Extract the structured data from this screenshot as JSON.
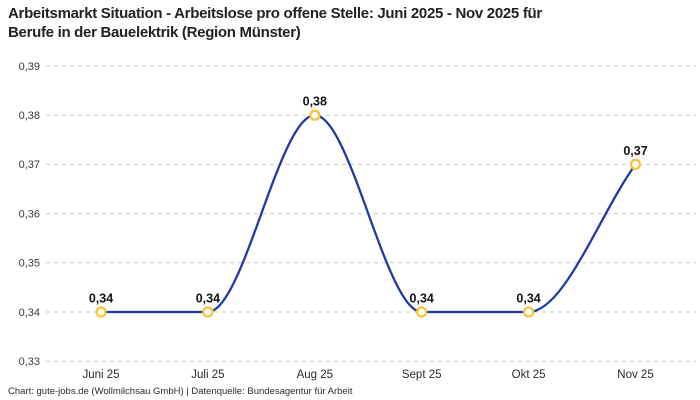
{
  "title": {
    "line1": "Arbeitsmarkt Situation - Arbeitslose pro offene Stelle: Juni 2025 - Nov 2025 für",
    "line2": "Berufe in der Bauelektrik (Region Münster)"
  },
  "caption": "Chart: gute-jobs.de (Wollmilchsau GmbH) | Datenquelle: Bundesagentur für Arbeit",
  "chart_data": {
    "type": "line",
    "title": "Arbeitsmarkt Situation - Arbeitslose pro offene Stelle: Juni 2025 - Nov 2025 für Berufe in der Bauelektrik (Region Münster)",
    "categories": [
      "Juni 25",
      "Juli 25",
      "Aug 25",
      "Sept 25",
      "Okt 25",
      "Nov 25"
    ],
    "values": [
      0.34,
      0.34,
      0.38,
      0.34,
      0.34,
      0.37
    ],
    "point_labels": [
      "0,34",
      "0,34",
      "0,38",
      "0,34",
      "0,34",
      "0,37"
    ],
    "y_ticks": [
      {
        "value": 0.39,
        "label": "0,39"
      },
      {
        "value": 0.38,
        "label": "0,38"
      },
      {
        "value": 0.37,
        "label": "0,37"
      },
      {
        "value": 0.36,
        "label": "0,36"
      },
      {
        "value": 0.35,
        "label": "0,35"
      },
      {
        "value": 0.34,
        "label": "0,34"
      },
      {
        "value": 0.33,
        "label": "0,33"
      }
    ],
    "ylim": [
      0.33,
      0.39
    ],
    "xlabel": "",
    "ylabel": "",
    "legend": "none",
    "grid": "horizontal-dashed",
    "interpolation": "monotone-cubic",
    "colors": {
      "line": "#1F3BA5",
      "marker_stroke": "#FCC434",
      "marker_fill": "#FFFFFF",
      "grid": "#C9C9C9",
      "point_label": "#141414",
      "tick_label": "#3A3A3A",
      "title": "#222222"
    }
  }
}
